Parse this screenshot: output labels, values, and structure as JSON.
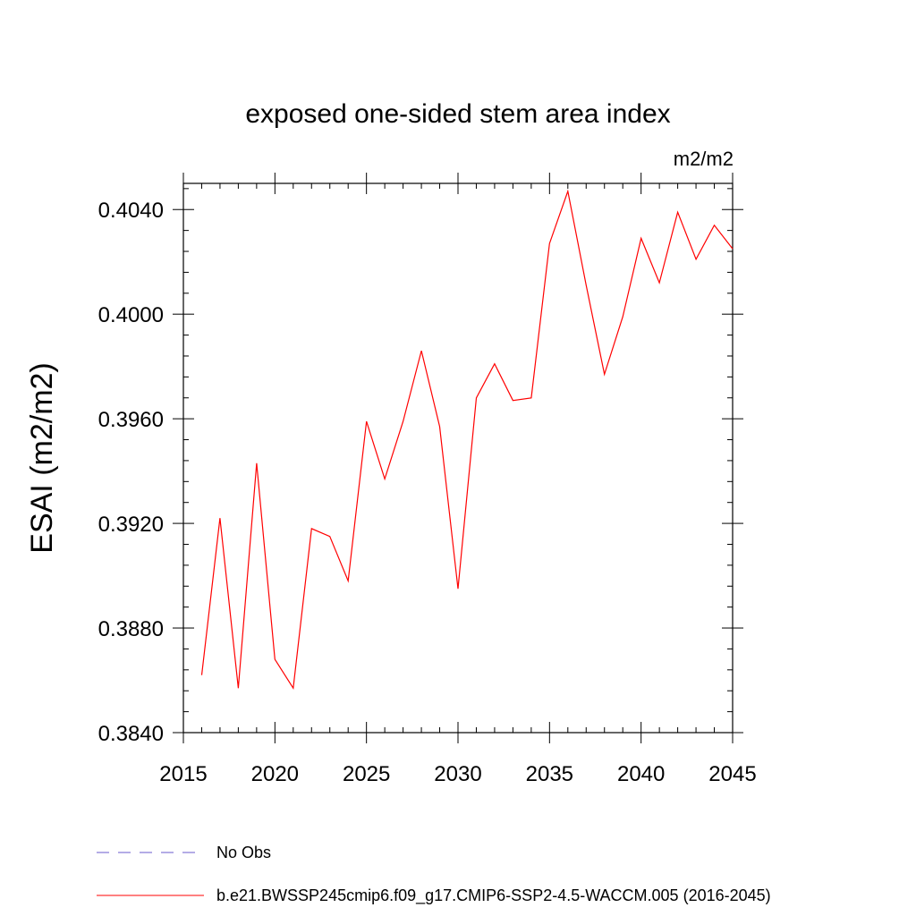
{
  "chart_data": {
    "type": "line",
    "title": "exposed one-sided stem area index",
    "units_label": "m2/m2",
    "ylabel": "ESAI  (m2/m2)",
    "xlim": [
      2015,
      2045
    ],
    "ylim": [
      0.384,
      0.405
    ],
    "x_ticks": [
      2015,
      2020,
      2025,
      2030,
      2035,
      2040,
      2045
    ],
    "x_tick_labels": [
      "2015",
      "2020",
      "2025",
      "2030",
      "2035",
      "2040",
      "2045"
    ],
    "y_ticks": [
      0.384,
      0.388,
      0.392,
      0.396,
      0.4,
      0.404
    ],
    "y_tick_labels": [
      "0.3840",
      "0.3880",
      "0.3920",
      "0.3960",
      "0.4000",
      "0.4040"
    ],
    "grid": false,
    "series": [
      {
        "name": "b.e21.BWSSP245cmip6.f09_g17.CMIP6-SSP2-4.5-WACCM.005 (2016-2045)",
        "color": "#ff0000",
        "x": [
          2016,
          2017,
          2018,
          2019,
          2020,
          2021,
          2022,
          2023,
          2024,
          2025,
          2026,
          2027,
          2028,
          2029,
          2030,
          2031,
          2032,
          2033,
          2034,
          2035,
          2036,
          2037,
          2038,
          2039,
          2040,
          2041,
          2042,
          2043,
          2044,
          2045
        ],
        "y": [
          0.3862,
          0.3922,
          0.3857,
          0.3943,
          0.3868,
          0.3857,
          0.3918,
          0.3915,
          0.3898,
          0.3959,
          0.3937,
          0.3959,
          0.3986,
          0.3957,
          0.3895,
          0.3968,
          0.3981,
          0.3967,
          0.3968,
          0.4027,
          0.4047,
          0.4011,
          0.3977,
          0.3999,
          0.4029,
          0.4012,
          0.4039,
          0.4021,
          0.4034,
          0.4025
        ]
      }
    ],
    "legend": [
      {
        "label": "No Obs",
        "color": "#6a5acd",
        "style": "dashed"
      },
      {
        "label": "b.e21.BWSSP245cmip6.f09_g17.CMIP6-SSP2-4.5-WACCM.005 (2016-2045)",
        "color": "#ff0000",
        "style": "solid"
      }
    ]
  }
}
